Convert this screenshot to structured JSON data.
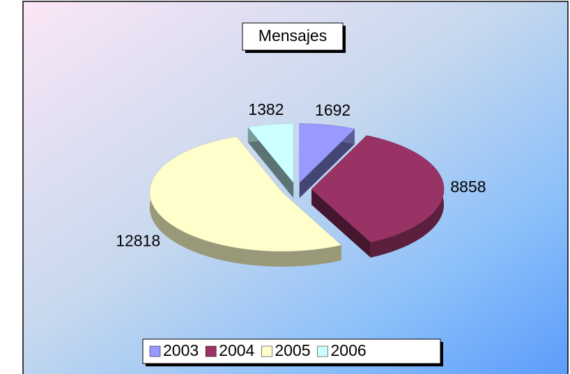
{
  "chart_data": {
    "type": "pie3d",
    "title": "Mensajes",
    "categories": [
      "2003",
      "2004",
      "2005",
      "2006"
    ],
    "values": [
      1692,
      8858,
      12818,
      1382
    ],
    "colors": [
      "#9999ff",
      "#993366",
      "#ffffcc",
      "#ccffff"
    ],
    "legend": "bottom"
  }
}
